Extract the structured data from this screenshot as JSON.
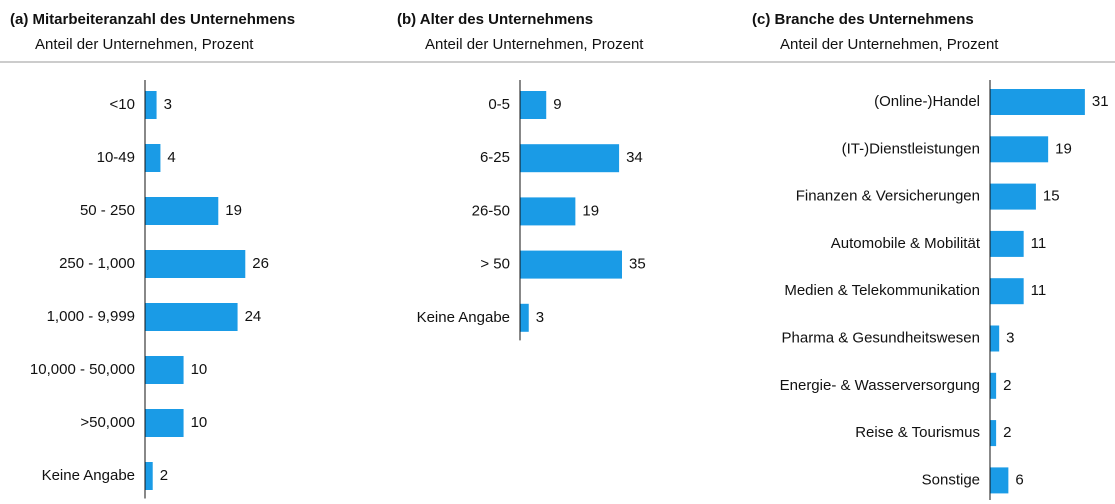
{
  "chart_data": [
    {
      "type": "bar",
      "title": "(a) Mitarbeiteranzahl des Unternehmens",
      "subtitle": "Anteil der Unternehmen, Prozent",
      "categories": [
        "<10",
        "10-49",
        "50 - 250",
        "250 - 1,000",
        "1,000 - 9,999",
        "10,000 - 50,000",
        ">50,000",
        "Keine Angabe"
      ],
      "values": [
        3,
        4,
        19,
        26,
        24,
        10,
        10,
        2
      ],
      "color": "#1a9be6",
      "xlim": [
        0,
        28
      ]
    },
    {
      "type": "bar",
      "title": "(b) Alter des Unternehmens",
      "subtitle": "Anteil der Unternehmen, Prozent",
      "categories": [
        "0-5",
        "6-25",
        "26-50",
        "> 50",
        "Keine Angabe"
      ],
      "values": [
        9,
        34,
        19,
        35,
        3
      ],
      "color": "#1a9be6",
      "xlim": [
        0,
        35
      ]
    },
    {
      "type": "bar",
      "title": "(c) Branche des Unternehmens",
      "subtitle": "Anteil der Unternehmen, Prozent",
      "categories": [
        "(Online-)Handel",
        "(IT-)Dienstleistungen",
        "Finanzen & Versicherungen",
        "Automobile & Mobilität",
        "Medien & Telekommunikation",
        "Pharma & Gesundheitswesen",
        "Energie- & Wasserversorgung",
        "Reise & Tourismus",
        "Sonstige"
      ],
      "values": [
        31,
        19,
        15,
        11,
        11,
        3,
        2,
        2,
        6
      ],
      "color": "#1a9be6",
      "xlim": [
        0,
        33
      ]
    }
  ]
}
